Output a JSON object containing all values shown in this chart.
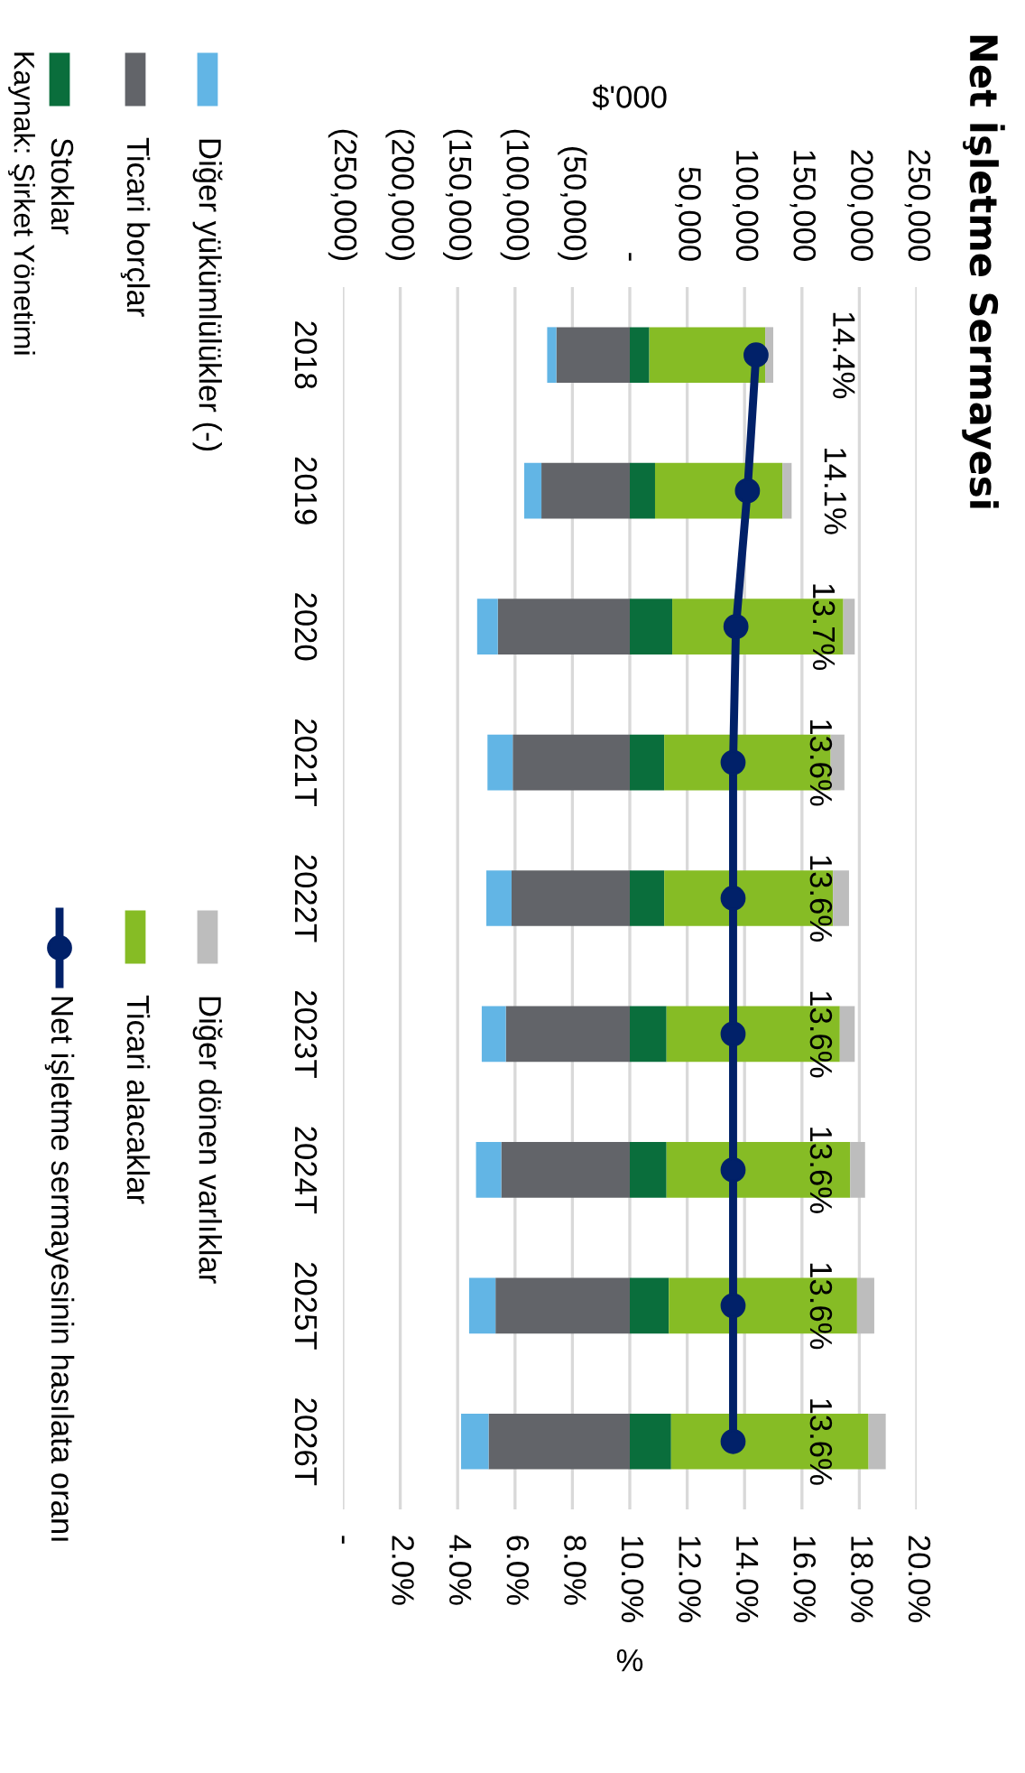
{
  "chart_data": {
    "type": "bar",
    "title": "Net İşletme Sermayesi",
    "orientation": "horizontal",
    "stacked": true,
    "categories": [
      "2018",
      "2019",
      "2020",
      "2021T",
      "2022T",
      "2023T",
      "2024T",
      "2025T",
      "2026T"
    ],
    "xlabel": "$'000",
    "x2label": "%",
    "xlim": [
      -250000,
      250000
    ],
    "xticks": [
      {
        "value": -250000,
        "label": "(250,000)"
      },
      {
        "value": -200000,
        "label": "(200,000)"
      },
      {
        "value": -150000,
        "label": "(150,000)"
      },
      {
        "value": -100000,
        "label": "(100,000)"
      },
      {
        "value": -50000,
        "label": "(50,000)"
      },
      {
        "value": 0,
        "label": "-"
      },
      {
        "value": 50000,
        "label": "50,000"
      },
      {
        "value": 100000,
        "label": "100,000"
      },
      {
        "value": 150000,
        "label": "150,000"
      },
      {
        "value": 200000,
        "label": "200,000"
      },
      {
        "value": 250000,
        "label": "250,000"
      }
    ],
    "x2lim": [
      0,
      20
    ],
    "x2ticks": [
      {
        "value": 0,
        "label": "-"
      },
      {
        "value": 2,
        "label": "2.0%"
      },
      {
        "value": 4,
        "label": "4.0%"
      },
      {
        "value": 6,
        "label": "6.0%"
      },
      {
        "value": 8,
        "label": "8.0%"
      },
      {
        "value": 10,
        "label": "10.0%"
      },
      {
        "value": 12,
        "label": "12.0%"
      },
      {
        "value": 14,
        "label": "14.0%"
      },
      {
        "value": 16,
        "label": "16.0%"
      },
      {
        "value": 18,
        "label": "18.0%"
      },
      {
        "value": 20,
        "label": "20.0%"
      }
    ],
    "grid": "x",
    "legend": "left",
    "series": [
      {
        "name": "Stoklar",
        "color": "#0a6e3c",
        "values": [
          17000,
          22000,
          37000,
          30000,
          30000,
          32000,
          32000,
          34000,
          36000
        ]
      },
      {
        "name": "Ticari alacaklar",
        "color": "#86bc25",
        "values": [
          101000,
          111000,
          149000,
          145000,
          147000,
          151000,
          160000,
          164000,
          172000
        ]
      },
      {
        "name": "Diğer dönen varlıklar",
        "color": "#bdbdbd",
        "values": [
          7000,
          8000,
          10000,
          12000,
          14000,
          13000,
          13000,
          15000,
          15000
        ]
      },
      {
        "name": "Ticari borçlar",
        "color": "#626469",
        "values": [
          -64000,
          -77000,
          -115000,
          -102000,
          -103000,
          -108000,
          -112000,
          -117000,
          -123000
        ]
      },
      {
        "name": "Diğer yükümlülükler (-)",
        "color": "#62b5e5",
        "values": [
          -8000,
          -15000,
          -18000,
          -22000,
          -22000,
          -21000,
          -22000,
          -23000,
          -24000
        ]
      },
      {
        "name": "Net işletme sermayesinin hasılata oranı",
        "type": "line",
        "axis": "x2",
        "color": "#012169",
        "marker": "circle",
        "line_style": "solid",
        "values": [
          14.4,
          14.1,
          13.7,
          13.6,
          13.6,
          13.6,
          13.6,
          13.6,
          13.6
        ],
        "value_labels": [
          "14.4%",
          "14.1%",
          "13.7%",
          "13.6%",
          "13.6%",
          "13.6%",
          "13.6%",
          "13.6%",
          "13.6%"
        ]
      }
    ],
    "annotations": [
      "Kaynak: Şirket Yönetimi"
    ]
  }
}
